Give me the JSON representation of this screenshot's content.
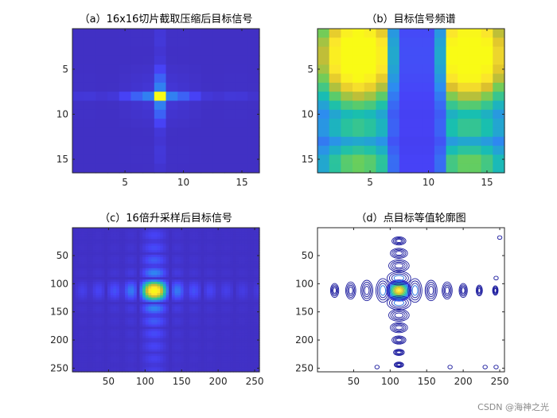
{
  "watermark": "CSDN @海神之光",
  "colormap": [
    "#3e26a8",
    "#4743f8",
    "#2d8cf0",
    "#18bfb0",
    "#69ce5c",
    "#d7ba2e",
    "#fbe52c",
    "#f9fb15"
  ],
  "chart_data": [
    {
      "panel": "a",
      "type": "heatmap",
      "title": "（a）16x16切片截取压缩后目标信号",
      "grid_size": 16,
      "xlim": [
        0.5,
        16.5
      ],
      "ylim": [
        0.5,
        16.5
      ],
      "xticks": [
        5,
        10,
        15
      ],
      "yticks": [
        5,
        10,
        15
      ],
      "peak": [
        8,
        8
      ],
      "description_values": {
        "background": 0.05,
        "peak": 1.0
      }
    },
    {
      "panel": "b",
      "type": "heatmap",
      "title": "（b）目标信号频谱",
      "grid_size": 16,
      "xlim": [
        0.5,
        16.5
      ],
      "ylim": [
        0.5,
        16.5
      ],
      "xticks": [
        5,
        10,
        15
      ],
      "yticks": [
        5,
        10,
        15
      ]
    },
    {
      "panel": "c",
      "type": "heatmap",
      "title": "（c）16倍升采样后目标信号",
      "grid_size": 256,
      "xlim": [
        0.5,
        256.5
      ],
      "ylim": [
        0.5,
        256.5
      ],
      "xticks": [
        50,
        100,
        150,
        200,
        250
      ],
      "yticks": [
        50,
        100,
        150,
        200,
        250
      ],
      "peak": [
        112,
        112
      ]
    },
    {
      "panel": "d",
      "type": "contour",
      "title": "（d）点目标等值轮廓图",
      "xlim": [
        0.5,
        256.5
      ],
      "ylim": [
        0.5,
        256.5
      ],
      "xticks": [
        50,
        100,
        150,
        200,
        250
      ],
      "yticks": [
        50,
        100,
        150,
        200,
        250
      ],
      "peak": [
        112,
        112
      ]
    }
  ]
}
